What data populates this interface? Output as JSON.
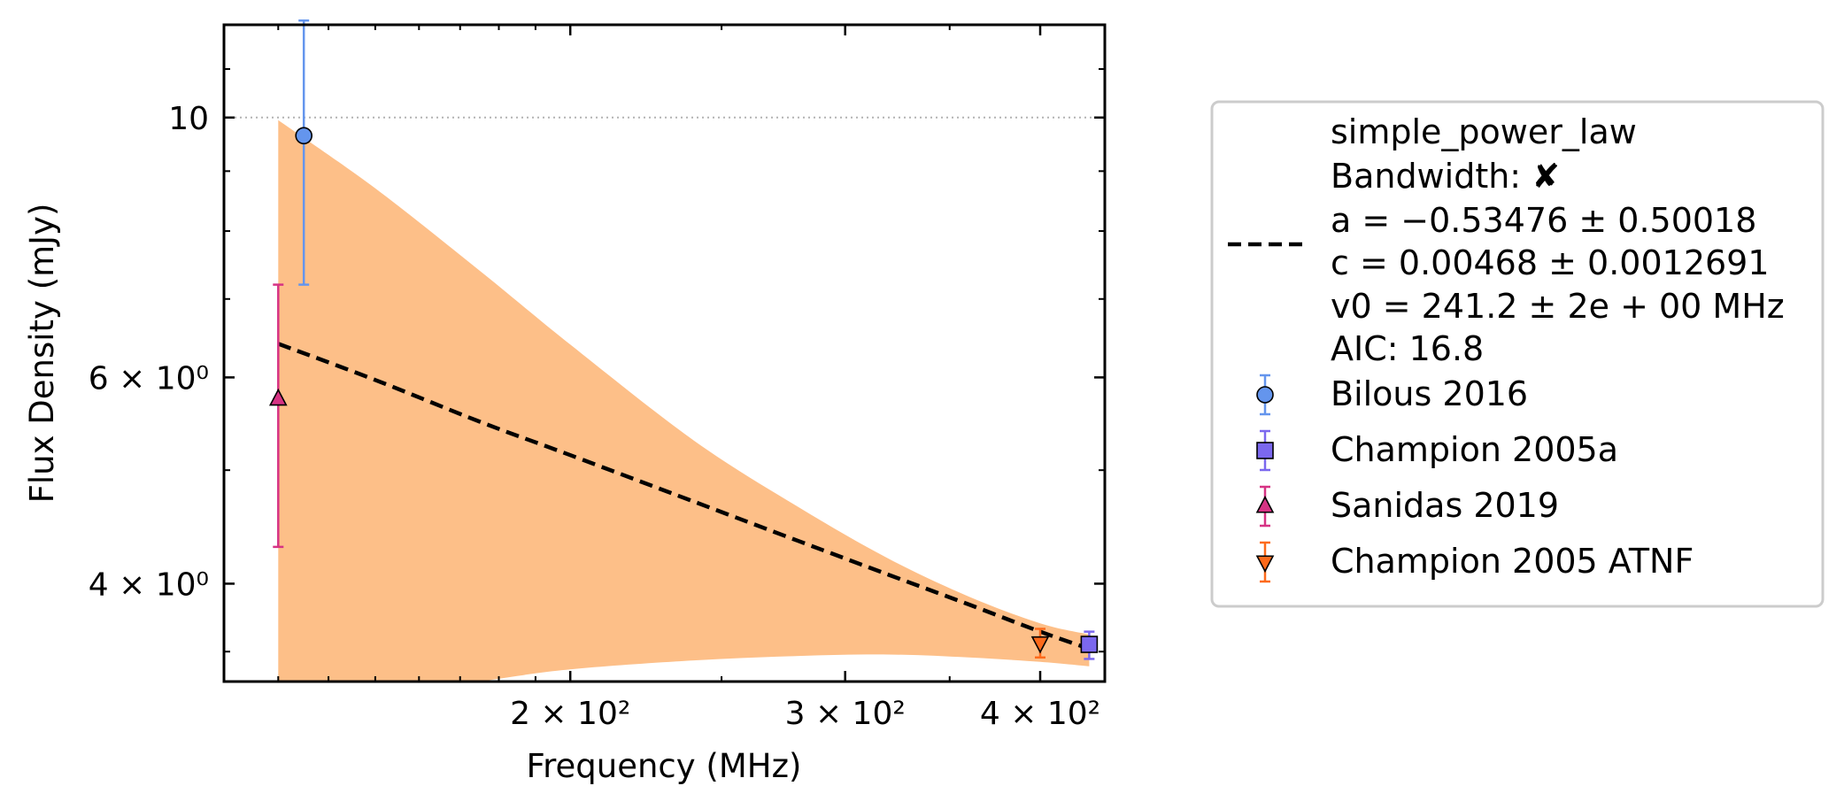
{
  "chart_data": {
    "type": "scatter",
    "xlabel": "Frequency (MHz)",
    "ylabel": "Flux Density (mJy)",
    "xscale": "log",
    "yscale": "log",
    "xlim": [
      120,
      440
    ],
    "ylim": [
      3.3,
      12.0
    ],
    "xticks": [
      {
        "value": 200,
        "label": "2 × 10²"
      },
      {
        "value": 300,
        "label": "3 × 10²"
      },
      {
        "value": 400,
        "label": "4 × 10²"
      }
    ],
    "yticks": [
      {
        "value": 10,
        "label": "10"
      },
      {
        "value": 6,
        "label": "6 × 10⁰"
      },
      {
        "value": 4,
        "label": "4 × 10⁰"
      }
    ],
    "hline": {
      "value": 10,
      "style": "dotted",
      "color": "#b3b3b3"
    },
    "grid": false,
    "legend_position": "outside-right",
    "fit": {
      "model": "simple_power_law",
      "bandwidth": "✘",
      "params": [
        "a = −0.53476 ± 0.50018",
        "c = 0.00468 ± 0.0012691",
        "v0 = 241.2 ± 2e + 00 MHz",
        "AIC: 16.8"
      ],
      "line_color": "#000000",
      "band_color": "#fdbf88",
      "x": [
        130,
        150,
        175,
        200,
        240,
        280,
        320,
        360,
        400,
        430
      ],
      "y": [
        6.41,
        5.97,
        5.5,
        5.15,
        4.7,
        4.35,
        4.07,
        3.84,
        3.64,
        3.52
      ],
      "upper": [
        9.95,
        8.7,
        7.4,
        6.4,
        5.3,
        4.65,
        4.2,
        3.9,
        3.7,
        3.62
      ],
      "lower": [
        3.05,
        3.2,
        3.3,
        3.38,
        3.44,
        3.47,
        3.48,
        3.46,
        3.43,
        3.4
      ]
    },
    "series": [
      {
        "name": "Bilous 2016",
        "marker": "circle",
        "color": "#6495ed",
        "points": [
          {
            "x": 135,
            "y": 9.65,
            "ylo": 7.2,
            "yhi": 12.1
          }
        ]
      },
      {
        "name": "Champion 2005a",
        "marker": "square",
        "color": "#7b68ee",
        "points": [
          {
            "x": 430,
            "y": 3.55,
            "ylo": 3.45,
            "yhi": 3.64
          }
        ]
      },
      {
        "name": "Sanidas 2019",
        "marker": "triangle-up",
        "color": "#d63384",
        "points": [
          {
            "x": 130,
            "y": 5.75,
            "ylo": 4.3,
            "yhi": 7.2
          }
        ]
      },
      {
        "name": "Champion 2005 ATNF",
        "marker": "triangle-down",
        "color": "#fd6a1b",
        "points": [
          {
            "x": 400,
            "y": 3.56,
            "ylo": 3.46,
            "yhi": 3.66
          }
        ]
      }
    ]
  }
}
